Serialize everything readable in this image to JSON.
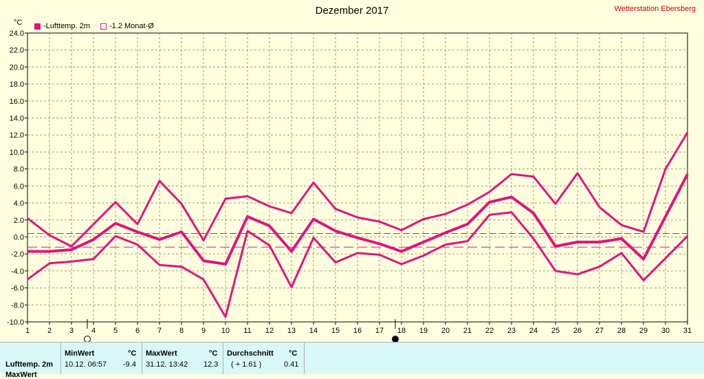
{
  "header": {
    "title": "Dezember 2017",
    "station": "Wetterstation Ebersberg",
    "unit": "°C",
    "legend": [
      {
        "label": "-Lufttemp. 2m",
        "color": "#e0147a",
        "filled": true
      },
      {
        "label": "-1.2 Monat-Ø",
        "color": "#e0147a",
        "filled": false
      }
    ]
  },
  "chart_data": {
    "type": "line",
    "x": [
      1,
      2,
      3,
      4,
      5,
      6,
      7,
      8,
      9,
      10,
      11,
      12,
      13,
      14,
      15,
      16,
      17,
      18,
      19,
      20,
      21,
      22,
      23,
      24,
      25,
      26,
      27,
      28,
      29,
      30,
      31
    ],
    "ylim": [
      -10,
      24
    ],
    "yticks": [
      "24.0",
      "22.0",
      "20.0",
      "18.0",
      "16.0",
      "14.0",
      "12.0",
      "10.0",
      "8.0",
      "6.0",
      "4.0",
      "2.0",
      "0.0",
      "-2.0",
      "-4.0",
      "-6.0",
      "-8.0",
      "-10.0"
    ],
    "xticks": [
      "1",
      "2",
      "3",
      "4",
      "5",
      "6",
      "7",
      "8",
      "9",
      "10",
      "11",
      "12",
      "13",
      "14",
      "15",
      "16",
      "17",
      "18",
      "19",
      "20",
      "21",
      "22",
      "23",
      "24",
      "25",
      "26",
      "27",
      "28",
      "29",
      "30",
      "31"
    ],
    "series": [
      {
        "role": "max",
        "values": [
          2.2,
          0.2,
          -1.1,
          1.5,
          4.1,
          1.5,
          6.6,
          3.9,
          -0.4,
          4.5,
          4.8,
          3.6,
          2.8,
          6.4,
          3.3,
          2.3,
          1.8,
          0.8,
          2.1,
          2.7,
          3.8,
          5.3,
          7.4,
          7.1,
          3.9,
          7.5,
          3.5,
          1.4,
          0.6,
          8.0,
          12.3
        ]
      },
      {
        "role": "mean",
        "values": [
          -1.7,
          -1.7,
          -1.5,
          -0.3,
          1.6,
          0.6,
          -0.3,
          0.6,
          -2.8,
          -3.2,
          2.4,
          1.3,
          -1.7,
          2.1,
          0.7,
          -0.1,
          -0.8,
          -1.7,
          -0.6,
          0.5,
          1.5,
          4.1,
          4.7,
          2.8,
          -1.1,
          -0.6,
          -0.6,
          -0.2,
          -2.6,
          2.4,
          7.4
        ]
      },
      {
        "role": "min",
        "values": [
          -5.0,
          -3.1,
          -2.9,
          -2.6,
          0.1,
          -0.9,
          -3.3,
          -3.5,
          -5.0,
          -9.4,
          0.7,
          -1.0,
          -5.9,
          -0.1,
          -3.0,
          -1.9,
          -2.1,
          -3.2,
          -2.2,
          -0.9,
          -0.5,
          2.6,
          2.9,
          -0.2,
          -4.0,
          -4.4,
          -3.5,
          -1.9,
          -5.1,
          -2.5,
          0.1
        ]
      }
    ],
    "reference_lines": [
      0.4,
      -1.2
    ],
    "moon_phases": [
      {
        "day": 4,
        "phase": "full-moon"
      },
      {
        "day": 18,
        "phase": "new-moon"
      }
    ],
    "grid": true
  },
  "stats": {
    "row_label": "Lufttemp. 2m",
    "row2_label": "MaxWert",
    "min_header": "MinWert",
    "min_unit": "°C",
    "min_time": "10.12.  06:57",
    "min_value": "-9.4",
    "max_header": "MaxWert",
    "max_unit": "°C",
    "max_time": "31.12.  13:42",
    "max_value": "12.3",
    "avg_header": "Durchschnitt",
    "avg_unit": "°C",
    "avg_delta": "( + 1.61 )",
    "avg_value": "0.41"
  }
}
